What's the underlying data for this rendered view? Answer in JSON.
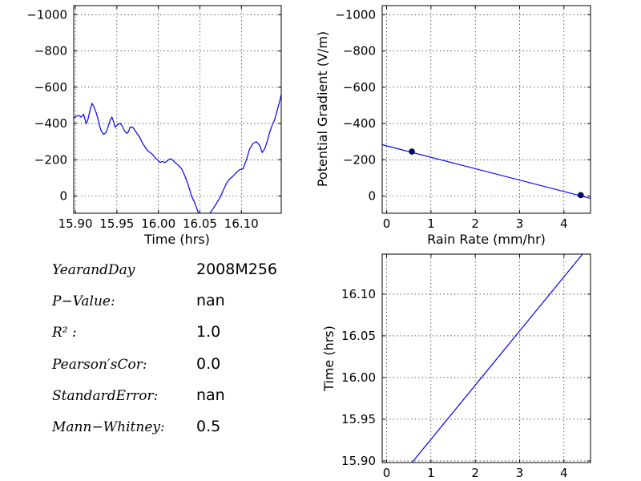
{
  "chart_data": [
    {
      "id": "timeseries",
      "type": "line",
      "xlabel": "Time (hrs)",
      "ylabel": "",
      "xlim": [
        15.898,
        16.148
      ],
      "ylim": [
        -1050,
        95
      ],
      "y_inverted": true,
      "grid": true,
      "xticks": [
        15.9,
        15.95,
        16.0,
        16.05,
        16.1
      ],
      "xtick_labels": [
        "15.90",
        "15.95",
        "16.00",
        "16.05",
        "16.10"
      ],
      "yticks": [
        0,
        -200,
        -400,
        -600,
        -800,
        -1000
      ],
      "ytick_labels": [
        "0",
        "−200",
        "−400",
        "−600",
        "−800",
        "−1000"
      ],
      "color": "#0000ff",
      "series": [
        {
          "x": [
            15.898,
            15.901,
            15.904,
            15.907,
            15.91,
            15.913,
            15.915,
            15.918,
            15.92,
            15.922,
            15.925,
            15.927,
            15.929,
            15.931,
            15.934,
            15.937,
            15.94,
            15.942,
            15.944,
            15.946,
            15.948,
            15.951,
            15.954,
            15.956,
            15.959,
            15.962,
            15.964,
            15.966,
            15.969,
            15.972,
            15.975,
            15.978,
            15.981,
            15.984,
            15.987,
            15.99,
            15.993,
            15.996,
            15.999,
            16.002,
            16.005,
            16.008,
            16.011,
            16.014,
            16.017,
            16.02,
            16.024,
            16.028,
            16.032,
            16.036,
            16.04,
            16.044,
            16.048,
            16.052,
            16.054,
            16.058,
            16.062,
            16.066,
            16.07,
            16.074,
            16.078,
            16.082,
            16.086,
            16.09,
            16.094,
            16.098,
            16.102,
            16.106,
            16.11,
            16.114,
            16.118,
            16.122,
            16.125,
            16.128,
            16.131,
            16.134,
            16.137,
            16.14,
            16.143,
            16.146,
            16.148
          ],
          "y": [
            -430,
            -440,
            -445,
            -435,
            -450,
            -400,
            -420,
            -480,
            -510,
            -495,
            -460,
            -430,
            -390,
            -360,
            -340,
            -350,
            -390,
            -420,
            -435,
            -410,
            -380,
            -395,
            -400,
            -390,
            -360,
            -345,
            -355,
            -380,
            -380,
            -360,
            -340,
            -320,
            -290,
            -270,
            -250,
            -240,
            -230,
            -210,
            -200,
            -185,
            -190,
            -185,
            -195,
            -205,
            -200,
            -185,
            -170,
            -150,
            -110,
            -60,
            0,
            40,
            90,
            110,
            120,
            115,
            95,
            70,
            40,
            10,
            -30,
            -70,
            -95,
            -110,
            -130,
            -145,
            -150,
            -200,
            -260,
            -290,
            -300,
            -280,
            -240,
            -260,
            -300,
            -350,
            -390,
            -420,
            -470,
            -520,
            -560
          ]
        }
      ]
    },
    {
      "id": "pg-vs-rainrate",
      "type": "scatter",
      "xlabel": "Rain Rate (mm/hr)",
      "ylabel": "Potential Gradient (V/m)",
      "xlim": [
        -0.1,
        4.6
      ],
      "ylim": [
        -1050,
        95
      ],
      "y_inverted": true,
      "grid": true,
      "xticks": [
        0,
        1,
        2,
        3,
        4
      ],
      "xtick_labels": [
        "0",
        "1",
        "2",
        "3",
        "4"
      ],
      "yticks": [
        0,
        -200,
        -400,
        -600,
        -800,
        -1000
      ],
      "ytick_labels": [
        "0",
        "−200",
        "−400",
        "−600",
        "−800",
        "−1000"
      ],
      "color": "#0000ff",
      "points": {
        "x": [
          0.57,
          4.38
        ],
        "y": [
          -245,
          -5
        ]
      },
      "fit_line": {
        "x": [
          -0.1,
          4.6
        ],
        "y": [
          -283,
          13
        ]
      }
    },
    {
      "id": "time-vs-rainrate",
      "type": "line",
      "xlabel": "",
      "ylabel": "Time (hrs)",
      "xlim": [
        -0.1,
        4.6
      ],
      "ylim": [
        15.898,
        16.148
      ],
      "grid": true,
      "xticks": [
        0,
        1,
        2,
        3,
        4
      ],
      "xtick_labels": [
        "0",
        "1",
        "2",
        "3",
        "4"
      ],
      "yticks": [
        15.9,
        15.95,
        16.0,
        16.05,
        16.1
      ],
      "ytick_labels": [
        "15.90",
        "15.95",
        "16.00",
        "16.05",
        "16.10"
      ],
      "color": "#0000ff",
      "series": [
        {
          "x": [
            0.57,
            4.42
          ],
          "y": [
            15.898,
            16.148
          ]
        }
      ]
    }
  ],
  "stats": [
    {
      "label": "YearandDay",
      "value": "2008M256"
    },
    {
      "label": "P−Value:",
      "value": "nan"
    },
    {
      "label": "R² :",
      "value": "1.0"
    },
    {
      "label": "Pearson′sCor:",
      "value": "0.0"
    },
    {
      "label": "StandardError:",
      "value": "nan"
    },
    {
      "label": "Mann−Whitney:",
      "value": "0.5"
    }
  ]
}
